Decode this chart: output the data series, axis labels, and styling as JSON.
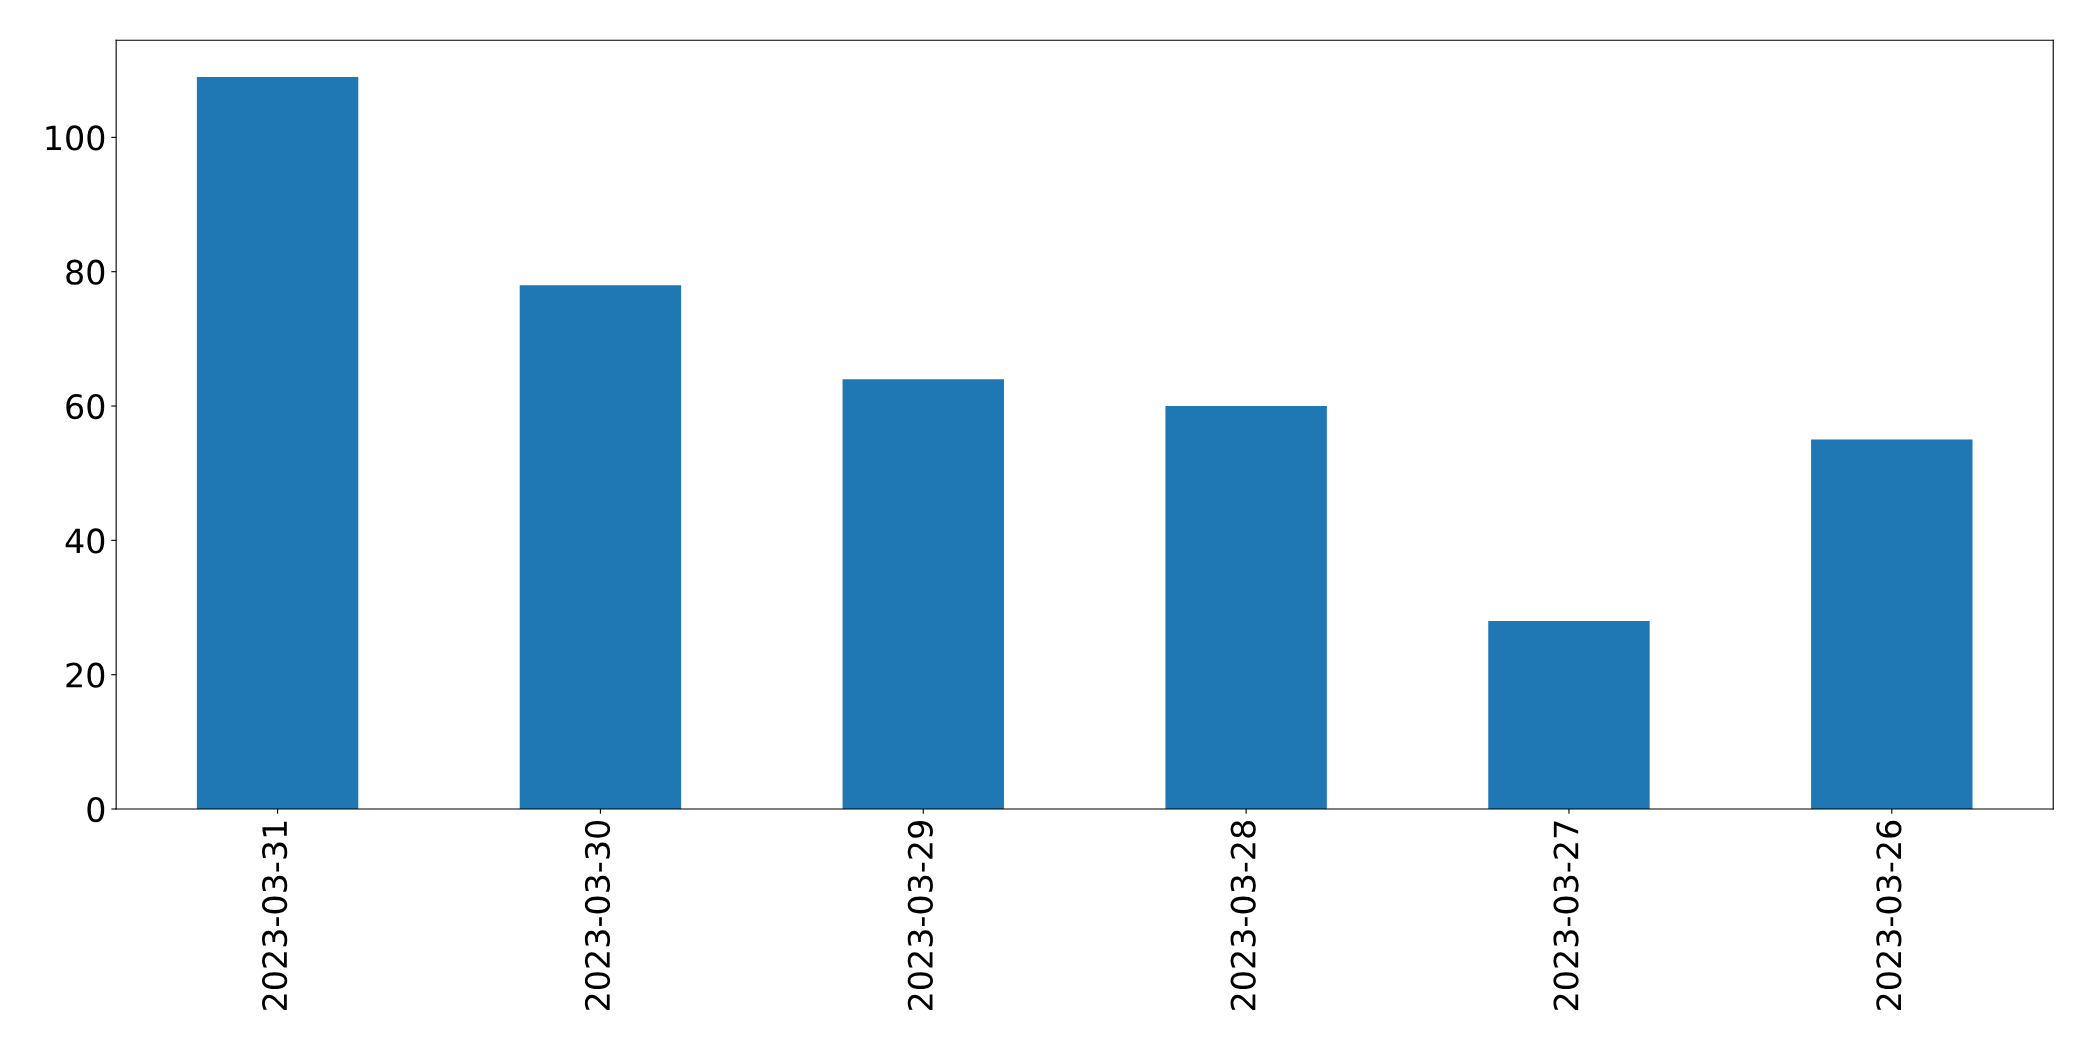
{
  "chart_data": {
    "type": "bar",
    "categories": [
      "2023-03-31",
      "2023-03-30",
      "2023-03-29",
      "2023-03-28",
      "2023-03-27",
      "2023-03-26"
    ],
    "values": [
      109,
      78,
      64,
      60,
      28,
      55
    ],
    "color": "#1f77b4",
    "ylim": [
      0,
      114.45
    ],
    "yticks": [
      0,
      20,
      40,
      60,
      80,
      100
    ],
    "grid": false,
    "legend": false
  }
}
